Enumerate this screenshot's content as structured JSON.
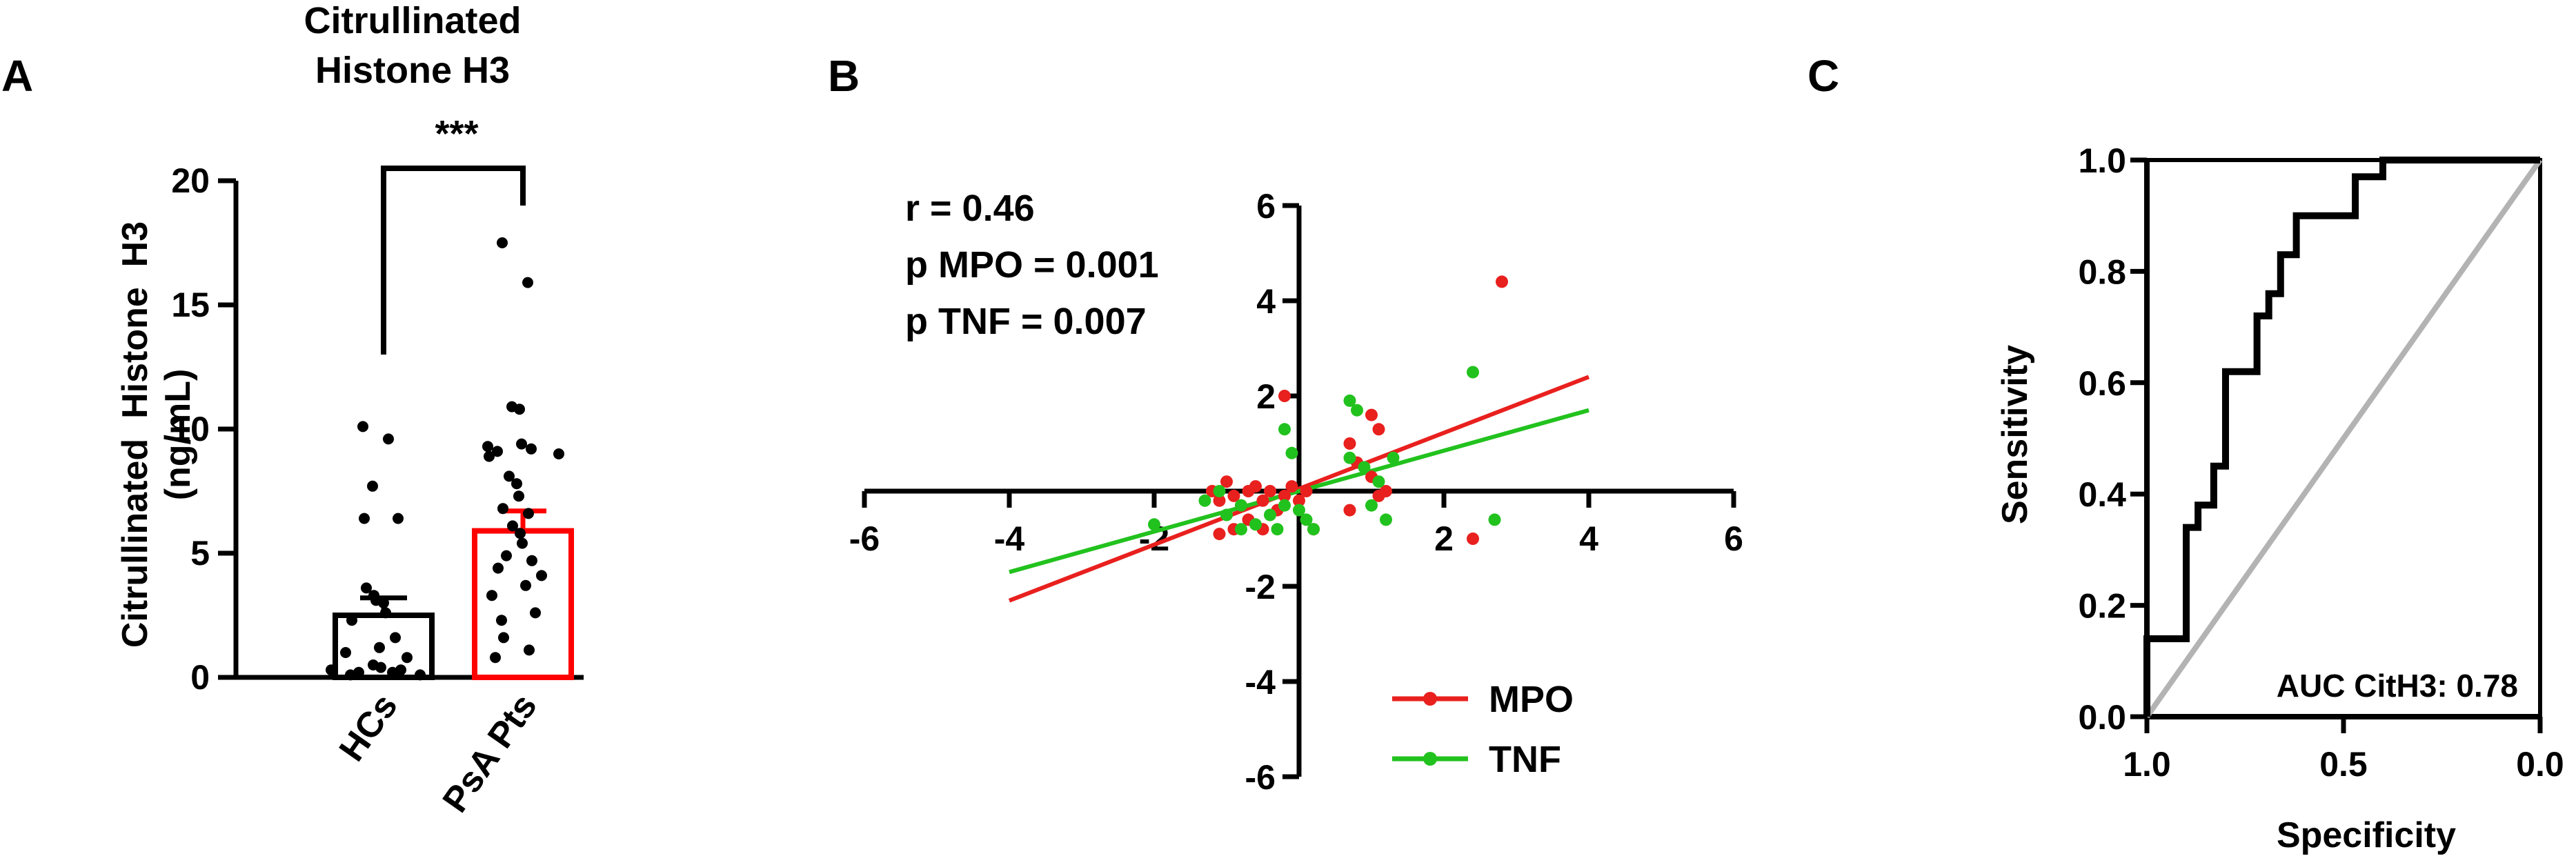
{
  "panels": {
    "A": "A",
    "B": "B",
    "C": "C"
  },
  "chart_data": [
    {
      "type": "bar",
      "panel": "A",
      "title": "Citrullinated Histone H3",
      "ylabel": "Citrullinated Histone H3 (ng/mL)",
      "xlabel": "",
      "categories": [
        "HCs",
        "PsA Pts"
      ],
      "values": [
        2.5,
        5.9
      ],
      "sem": [
        0.7,
        0.8
      ],
      "ylim": [
        0,
        20
      ],
      "yticks": [
        0,
        5,
        10,
        15,
        20
      ],
      "bar_colors": [
        "#000000",
        "#ff0000"
      ],
      "significance": "***",
      "points": [
        {
          "group": "HCs",
          "y": [
            10.1,
            9.6,
            7.7,
            6.4,
            6.4,
            3.6,
            3.3,
            3.1,
            3.0,
            2.6,
            2.3,
            1.6,
            1.2,
            1.0,
            0.8,
            0.5,
            0.4,
            0.3,
            0.3,
            0.2,
            0.2,
            0.1,
            0.1
          ]
        },
        {
          "group": "PsA Pts",
          "y": [
            17.5,
            15.9,
            10.9,
            10.8,
            9.4,
            9.3,
            9.2,
            9.1,
            9.0,
            8.9,
            8.1,
            7.8,
            7.3,
            6.8,
            6.6,
            6.1,
            5.8,
            5.4,
            4.9,
            4.7,
            4.4,
            4.1,
            3.7,
            3.3,
            2.6,
            2.3,
            1.6,
            1.1,
            0.8
          ]
        }
      ]
    },
    {
      "type": "scatter",
      "panel": "B",
      "xlim": [
        -6,
        6
      ],
      "ylim": [
        -6,
        6
      ],
      "xticks": [
        -6,
        -4,
        -2,
        2,
        4,
        6
      ],
      "yticks": [
        -6,
        -4,
        -2,
        2,
        4,
        6
      ],
      "annotations": [
        "r = 0.46",
        "p MPO = 0.001",
        "p TNF = 0.007"
      ],
      "legend_position": "bottom-right",
      "series": [
        {
          "name": "MPO",
          "color": "#e8201e",
          "fit": {
            "x": [
              -4,
              4
            ],
            "y": [
              -2.3,
              2.4
            ]
          },
          "points": [
            [
              -1.2,
              0.0
            ],
            [
              -1.1,
              -0.2
            ],
            [
              -1.0,
              0.2
            ],
            [
              -0.9,
              -0.1
            ],
            [
              -0.8,
              -0.3
            ],
            [
              -0.7,
              0.0
            ],
            [
              -0.6,
              0.1
            ],
            [
              -0.5,
              -0.2
            ],
            [
              -0.4,
              0.0
            ],
            [
              -0.3,
              -0.4
            ],
            [
              -0.2,
              -0.1
            ],
            [
              -0.1,
              0.1
            ],
            [
              0.0,
              -0.2
            ],
            [
              0.1,
              0.0
            ],
            [
              -1.1,
              -0.9
            ],
            [
              -0.9,
              -0.8
            ],
            [
              -0.7,
              -0.6
            ],
            [
              -0.5,
              -0.8
            ],
            [
              0.2,
              -0.8
            ],
            [
              -0.2,
              2.0
            ],
            [
              0.7,
              1.0
            ],
            [
              0.8,
              0.6
            ],
            [
              1.0,
              0.3
            ],
            [
              1.1,
              -0.1
            ],
            [
              0.7,
              -0.4
            ],
            [
              1.0,
              1.6
            ],
            [
              1.1,
              1.3
            ],
            [
              1.2,
              0.0
            ],
            [
              2.4,
              -1.0
            ],
            [
              2.8,
              4.4
            ]
          ]
        },
        {
          "name": "TNF",
          "color": "#22c21e",
          "fit": {
            "x": [
              -4,
              4
            ],
            "y": [
              -1.7,
              1.7
            ]
          },
          "points": [
            [
              -2.0,
              -0.7
            ],
            [
              -1.3,
              -0.2
            ],
            [
              -1.1,
              0.0
            ],
            [
              -1.0,
              -0.5
            ],
            [
              -0.8,
              -0.8
            ],
            [
              -0.6,
              -0.7
            ],
            [
              -0.4,
              -0.5
            ],
            [
              -0.3,
              -0.8
            ],
            [
              -0.2,
              -0.3
            ],
            [
              0.0,
              -0.4
            ],
            [
              0.1,
              -0.6
            ],
            [
              0.2,
              -0.8
            ],
            [
              -0.1,
              0.8
            ],
            [
              -0.2,
              1.3
            ],
            [
              0.7,
              1.9
            ],
            [
              0.8,
              1.7
            ],
            [
              0.7,
              0.7
            ],
            [
              0.9,
              0.5
            ],
            [
              1.0,
              -0.3
            ],
            [
              1.2,
              -0.6
            ],
            [
              1.1,
              0.2
            ],
            [
              1.3,
              0.7
            ],
            [
              2.4,
              2.5
            ],
            [
              2.7,
              -0.6
            ],
            [
              -0.8,
              -0.3
            ]
          ]
        }
      ]
    },
    {
      "type": "line",
      "panel": "C",
      "xlabel": "Specificity",
      "ylabel": "Sensitivity",
      "xlim": [
        1.0,
        0.0
      ],
      "ylim": [
        0.0,
        1.0
      ],
      "xticks": [
        "1.0",
        "0.5",
        "0.0"
      ],
      "yticks": [
        "0.0",
        "0.2",
        "0.4",
        "0.6",
        "0.8",
        "1.0"
      ],
      "annotation": "AUC CitH3: 0.78",
      "series": [
        {
          "name": "ROC",
          "color": "#000000",
          "x": [
            1.0,
            1.0,
            0.9,
            0.9,
            0.87,
            0.87,
            0.83,
            0.83,
            0.8,
            0.8,
            0.72,
            0.72,
            0.69,
            0.69,
            0.66,
            0.66,
            0.62,
            0.62,
            0.55,
            0.55,
            0.47,
            0.47,
            0.4,
            0.4,
            0.35,
            0.35,
            0.0
          ],
          "y": [
            0.0,
            0.14,
            0.14,
            0.34,
            0.34,
            0.38,
            0.38,
            0.45,
            0.45,
            0.62,
            0.62,
            0.72,
            0.72,
            0.76,
            0.76,
            0.83,
            0.83,
            0.9,
            0.9,
            0.9,
            0.9,
            0.97,
            0.97,
            1.0,
            1.0,
            1.0,
            1.0
          ]
        },
        {
          "name": "Reference",
          "color": "#b3b3b3",
          "x": [
            1.0,
            0.0
          ],
          "y": [
            0.0,
            1.0
          ]
        }
      ]
    }
  ]
}
